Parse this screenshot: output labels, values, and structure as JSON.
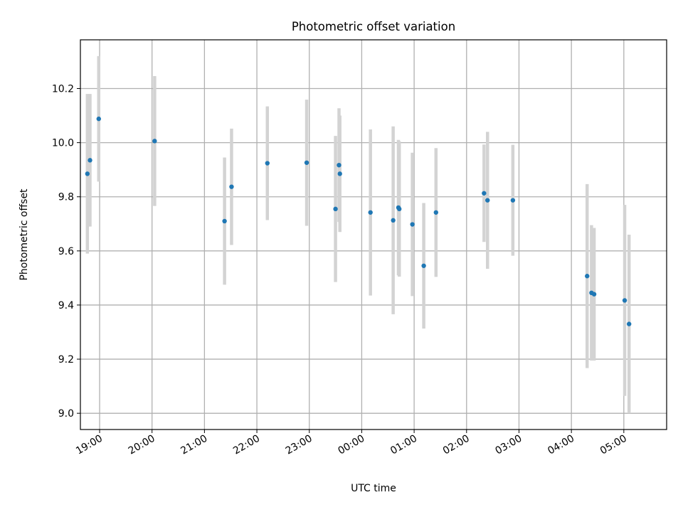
{
  "chart_data": {
    "type": "scatter",
    "title": "Photometric offset variation",
    "xlabel": "UTC time",
    "ylabel": "Photometric offset",
    "x_axis": {
      "unit": "UTC time",
      "range": [
        "18:38",
        "05:49"
      ],
      "tick_labels": [
        "19:00",
        "20:00",
        "21:00",
        "22:00",
        "23:00",
        "00:00",
        "01:00",
        "02:00",
        "03:00",
        "04:00",
        "05:00"
      ]
    },
    "y_axis": {
      "range": [
        8.94,
        10.38
      ],
      "tick_labels": [
        "9.0",
        "9.2",
        "9.4",
        "9.6",
        "9.8",
        "10.0",
        "10.2"
      ]
    },
    "grid": true,
    "marker_color": "#1f77b4",
    "errorbar_color": "#d3d3d3",
    "grid_color": "#b0b0b0",
    "points": [
      {
        "t": "18:46",
        "y": 9.885,
        "err": 0.295
      },
      {
        "t": "18:49",
        "y": 9.935,
        "err": 0.245
      },
      {
        "t": "18:59",
        "y": 10.088,
        "err": 0.232
      },
      {
        "t": "20:03",
        "y": 10.006,
        "err": 0.24
      },
      {
        "t": "21:23",
        "y": 9.71,
        "err": 0.235
      },
      {
        "t": "21:31",
        "y": 9.837,
        "err": 0.215
      },
      {
        "t": "22:12",
        "y": 9.924,
        "err": 0.21
      },
      {
        "t": "22:57",
        "y": 9.926,
        "err": 0.233
      },
      {
        "t": "23:30",
        "y": 9.755,
        "err": 0.27
      },
      {
        "t": "23:34",
        "y": 9.917,
        "err": 0.21
      },
      {
        "t": "23:35",
        "y": 9.885,
        "err": 0.215
      },
      {
        "t": "00:10",
        "y": 9.742,
        "err": 0.307
      },
      {
        "t": "00:36",
        "y": 9.713,
        "err": 0.347
      },
      {
        "t": "00:42",
        "y": 9.76,
        "err": 0.25
      },
      {
        "t": "00:43",
        "y": 9.755,
        "err": 0.25
      },
      {
        "t": "00:58",
        "y": 9.698,
        "err": 0.265
      },
      {
        "t": "01:11",
        "y": 9.545,
        "err": 0.232
      },
      {
        "t": "01:25",
        "y": 9.742,
        "err": 0.238
      },
      {
        "t": "02:20",
        "y": 9.813,
        "err": 0.18
      },
      {
        "t": "02:24",
        "y": 9.787,
        "err": 0.253
      },
      {
        "t": "02:53",
        "y": 9.787,
        "err": 0.205
      },
      {
        "t": "04:18",
        "y": 9.507,
        "err": 0.34
      },
      {
        "t": "04:23",
        "y": 9.445,
        "err": 0.25
      },
      {
        "t": "04:26",
        "y": 9.44,
        "err": 0.245
      },
      {
        "t": "05:01",
        "y": 9.417,
        "err": 0.353
      },
      {
        "t": "05:06",
        "y": 9.33,
        "err": 0.33
      }
    ]
  }
}
